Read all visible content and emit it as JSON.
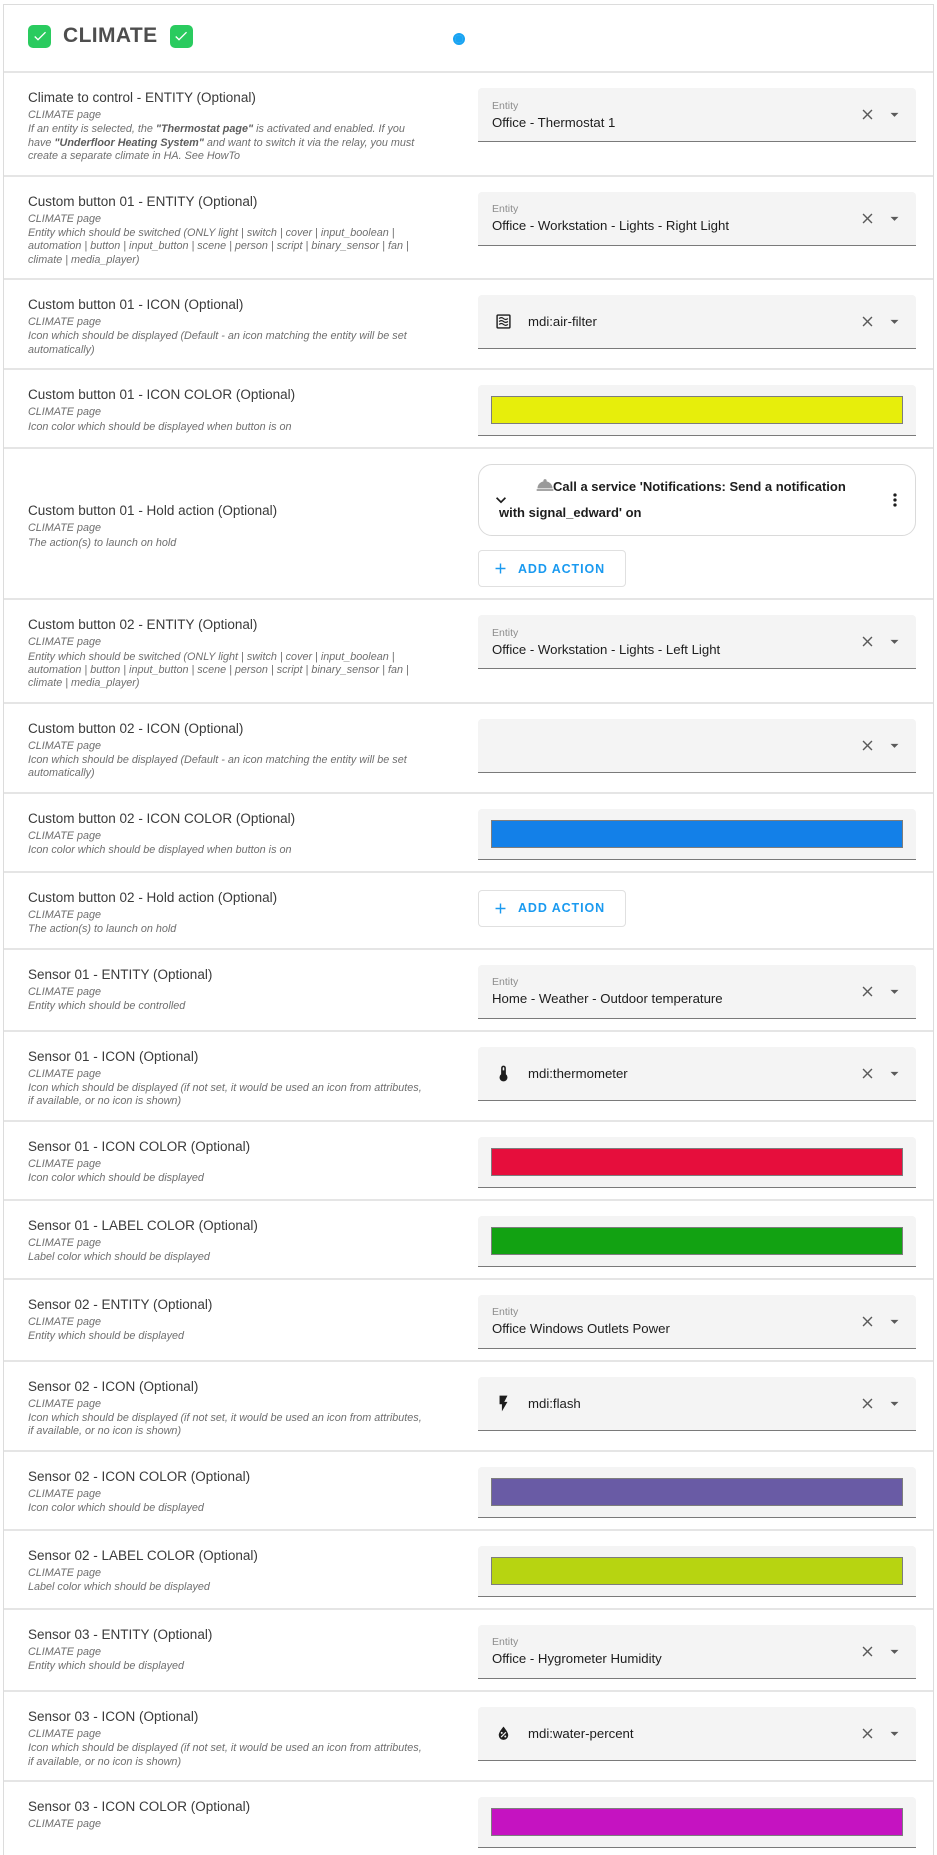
{
  "ui": {
    "accent_blue": "#1a9af0",
    "radio_blue": "#18a3f2",
    "checkbox_green": "#2acb5f",
    "swatch_border": "#7d7d7d"
  },
  "labels": {
    "add_action": "ADD ACTION",
    "add_action_plus": "+"
  },
  "header": {
    "title": "CLIMATE",
    "radio_selected": true
  },
  "rows": [
    {
      "title": "Climate to control - ENTITY (Optional)",
      "subtitle": "CLIMATE page",
      "desc": [
        {
          "text": "If an entity is selected, the ",
          "bold": false
        },
        {
          "text": "\"Thermostat page\"",
          "bold": true
        },
        {
          "text": " is activated and enabled. If you have ",
          "bold": false
        },
        {
          "text": "\"Underfloor Heating System\"",
          "bold": true
        },
        {
          "text": " and want to switch it via the relay, you must create a separate climate in HA. See HowTo",
          "bold": false
        }
      ],
      "field": {
        "type": "entity",
        "label": "Entity",
        "value": "Office - Thermostat 1"
      }
    },
    {
      "title": "Custom button 01 - ENTITY (Optional)",
      "subtitle": "CLIMATE page",
      "desc": [
        {
          "text": "Entity which should be switched (ONLY light | switch | cover | input_boolean | automation | button | input_button | scene | person | script | binary_sensor | fan | climate | media_player)",
          "bold": false
        }
      ],
      "field": {
        "type": "entity",
        "label": "Entity",
        "value": "Office - Workstation - Lights - Right Light"
      }
    },
    {
      "title": "Custom button 01 - ICON (Optional)",
      "subtitle": "CLIMATE page",
      "desc": [
        {
          "text": "Icon which should be displayed (Default - an icon matching the entity will be set automatically)",
          "bold": false
        }
      ],
      "field": {
        "type": "icon",
        "icon": "air-filter-icon",
        "value": "mdi:air-filter"
      }
    },
    {
      "title": "Custom button 01 - ICON COLOR (Optional)",
      "subtitle": "CLIMATE page",
      "desc": [
        {
          "text": "Icon color which should be displayed when button is on",
          "bold": false
        }
      ],
      "field": {
        "type": "color",
        "color": "#e7ee0b"
      }
    },
    {
      "title": "Custom button 01 - Hold action (Optional)",
      "subtitle": "CLIMATE page",
      "desc": [
        {
          "text": "The action(s) to launch on hold",
          "bold": false
        }
      ],
      "field": {
        "type": "action",
        "action_text": "Call a service 'Notifications: Send a notification with signal_edward' on"
      }
    },
    {
      "title": "Custom button 02 - ENTITY (Optional)",
      "subtitle": "CLIMATE page",
      "desc": [
        {
          "text": "Entity which should be switched (ONLY light | switch | cover | input_boolean | automation | button | input_button | scene | person | script | binary_sensor | fan | climate | media_player)",
          "bold": false
        }
      ],
      "field": {
        "type": "entity",
        "label": "Entity",
        "value": "Office - Workstation - Lights - Left Light"
      }
    },
    {
      "title": "Custom button 02 - ICON (Optional)",
      "subtitle": "CLIMATE page",
      "desc": [
        {
          "text": "Icon which should be displayed (Default - an icon matching the entity will be set automatically)",
          "bold": false
        }
      ],
      "field": {
        "type": "icon",
        "icon": "",
        "value": ""
      }
    },
    {
      "title": "Custom button 02 - ICON COLOR (Optional)",
      "subtitle": "CLIMATE page",
      "desc": [
        {
          "text": "Icon color which should be displayed when button is on",
          "bold": false
        }
      ],
      "field": {
        "type": "color",
        "color": "#1380e8"
      }
    },
    {
      "title": "Custom button 02 - Hold action (Optional)",
      "subtitle": "CLIMATE page",
      "desc": [
        {
          "text": "The action(s) to launch on hold",
          "bold": false
        }
      ],
      "field": {
        "type": "add_action"
      }
    },
    {
      "title": "Sensor 01 - ENTITY (Optional)",
      "subtitle": "CLIMATE page",
      "desc": [
        {
          "text": "Entity which should be controlled",
          "bold": false
        }
      ],
      "field": {
        "type": "entity",
        "label": "Entity",
        "value": "Home - Weather - Outdoor temperature"
      }
    },
    {
      "title": "Sensor 01 - ICON (Optional)",
      "subtitle": "CLIMATE page",
      "desc": [
        {
          "text": "Icon which should be displayed (if not set, it would be used an icon from attributes, if available, or no icon is shown)",
          "bold": false
        }
      ],
      "field": {
        "type": "icon",
        "icon": "thermometer-icon",
        "value": "mdi:thermometer"
      }
    },
    {
      "title": "Sensor 01 - ICON COLOR (Optional)",
      "subtitle": "CLIMATE page",
      "desc": [
        {
          "text": "Icon color which should be displayed",
          "bold": false
        }
      ],
      "field": {
        "type": "color",
        "color": "#e60e3c"
      }
    },
    {
      "title": "Sensor 01 - LABEL COLOR (Optional)",
      "subtitle": "CLIMATE page",
      "desc": [
        {
          "text": "Label color which should be displayed",
          "bold": false
        }
      ],
      "field": {
        "type": "color",
        "color": "#12a212"
      }
    },
    {
      "title": "Sensor 02 - ENTITY (Optional)",
      "subtitle": "CLIMATE page",
      "desc": [
        {
          "text": "Entity which should be displayed",
          "bold": false
        }
      ],
      "field": {
        "type": "entity",
        "label": "Entity",
        "value": "Office Windows Outlets Power"
      }
    },
    {
      "title": "Sensor 02 - ICON (Optional)",
      "subtitle": "CLIMATE page",
      "desc": [
        {
          "text": "Icon which should be displayed (if not set, it would be used an icon from attributes, if available, or no icon is shown)",
          "bold": false
        }
      ],
      "field": {
        "type": "icon",
        "icon": "flash-icon",
        "value": "mdi:flash"
      }
    },
    {
      "title": "Sensor 02 - ICON COLOR (Optional)",
      "subtitle": "CLIMATE page",
      "desc": [
        {
          "text": "Icon color which should be displayed",
          "bold": false
        }
      ],
      "field": {
        "type": "color",
        "color": "#695ba5"
      }
    },
    {
      "title": "Sensor 02 - LABEL COLOR (Optional)",
      "subtitle": "CLIMATE page",
      "desc": [
        {
          "text": "Label color which should be displayed",
          "bold": false
        }
      ],
      "field": {
        "type": "color",
        "color": "#b7d411"
      }
    },
    {
      "title": "Sensor 03 - ENTITY (Optional)",
      "subtitle": "CLIMATE page",
      "desc": [
        {
          "text": "Entity which should be displayed",
          "bold": false
        }
      ],
      "field": {
        "type": "entity",
        "label": "Entity",
        "value": "Office - Hygrometer Humidity"
      }
    },
    {
      "title": "Sensor 03 - ICON (Optional)",
      "subtitle": "CLIMATE page",
      "desc": [
        {
          "text": "Icon which should be displayed (if not set, it would be used an icon from attributes, if available, or no icon is shown)",
          "bold": false
        }
      ],
      "field": {
        "type": "icon",
        "icon": "water-percent-icon",
        "value": "mdi:water-percent"
      }
    },
    {
      "title": "Sensor 03 - ICON COLOR (Optional)",
      "subtitle": "CLIMATE page",
      "desc": [],
      "field": {
        "type": "color",
        "color": "#c513c1"
      }
    }
  ]
}
